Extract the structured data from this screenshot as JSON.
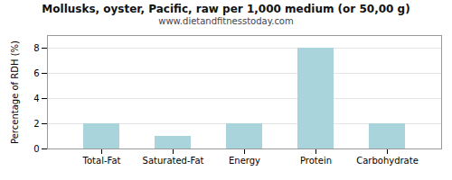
{
  "chart_data": {
    "type": "bar",
    "title": "Mollusks, oyster, Pacific, raw per 1,000 medium (or 50,00 g)",
    "subtitle": "www.dietandfitnesstoday.com",
    "categories": [
      "Total-Fat",
      "Saturated-Fat",
      "Energy",
      "Protein",
      "Carbohydrate"
    ],
    "values": [
      2.0,
      1.0,
      2.0,
      8.0,
      2.0
    ],
    "color": "#aad4dc",
    "ylabel": "Percentage of RDH (%)",
    "ylim": [
      0,
      9
    ],
    "yticks": [
      0,
      2,
      4,
      6,
      8
    ],
    "grid": true
  }
}
